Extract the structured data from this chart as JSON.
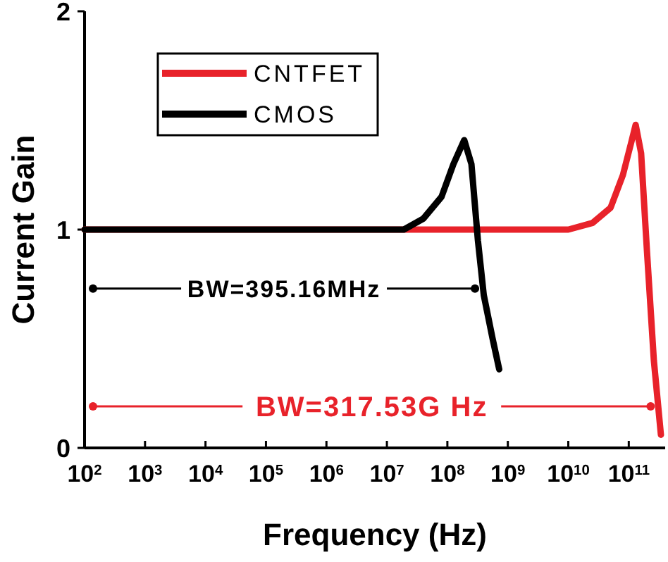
{
  "chart_data": {
    "type": "line",
    "xlabel": "Frequency (Hz)",
    "ylabel": "Current Gain",
    "log": "x",
    "xlim": [
      100,
      400000000000
    ],
    "xticks": [
      {
        "value": 100,
        "label": "10$^{2}$"
      },
      {
        "value": 1000,
        "label": "10$^{3}$"
      },
      {
        "value": 10000,
        "label": "10$^{4}$"
      },
      {
        "value": 100000,
        "label": "10$^{5}$"
      },
      {
        "value": 1000000,
        "label": "10$^{6}$"
      },
      {
        "value": 10000000,
        "label": "10$^{7}$"
      },
      {
        "value": 100000000,
        "label": "10$^{8}$"
      },
      {
        "value": 1000000000,
        "label": "10$^{9}$"
      },
      {
        "value": 10000000000,
        "label": "10$^{10}$"
      },
      {
        "value": 100000000000,
        "label": "10$^{11}$"
      }
    ],
    "ylim": [
      0,
      2
    ],
    "yticks": [
      0,
      1,
      2
    ],
    "grid": false,
    "legend": "top left",
    "line_style": "solid",
    "series": [
      {
        "name": "CNTFET",
        "color": "#e8222a",
        "x": [
          100,
          10000000000,
          25000000000,
          50000000000,
          80000000000,
          110000000000,
          130000000000,
          160000000000,
          200000000000,
          260000000000,
          340000000000
        ],
        "values": [
          1,
          1,
          1.03,
          1.1,
          1.25,
          1.4,
          1.48,
          1.35,
          0.9,
          0.4,
          0.06
        ]
      },
      {
        "name": "CMOS",
        "color": "#000000",
        "x": [
          100,
          10000000,
          19000000,
          40000000,
          80000000,
          126000000,
          190000000,
          250000000,
          320000000,
          400000000,
          560000000,
          720000000
        ],
        "values": [
          1,
          1,
          1,
          1.05,
          1.15,
          1.3,
          1.41,
          1.3,
          0.95,
          0.7,
          0.5,
          0.36
        ]
      }
    ],
    "annotations": [
      {
        "text": "BW=395.16MHz",
        "x": 395160000,
        "y": 0.73
      },
      {
        "text": "BW=317.53G Hz",
        "x": 317530000000,
        "y": 0.19
      }
    ]
  }
}
